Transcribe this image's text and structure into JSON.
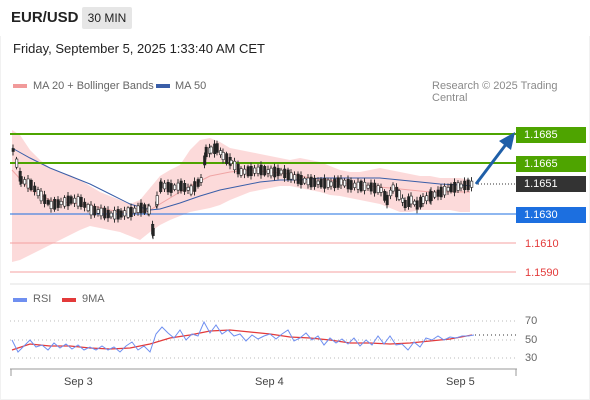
{
  "header": {
    "pair": "EUR/USD",
    "timeframe": "30 MIN",
    "datetime": "Friday, September 5, 2025 1:33:40 AM CET"
  },
  "legend": {
    "bb_label": "MA 20 + Bollinger Bands",
    "ma50_label": "MA 50",
    "research": "Research © 2025 Trading Central"
  },
  "levels": {
    "r2": "1.1685",
    "r1": "1.1665",
    "current": "1.1651",
    "s1": "1.1630",
    "s2": "1.1610",
    "s3": "1.1590"
  },
  "rsi": {
    "label": "RSI",
    "ma_label": "9MA",
    "ticks": [
      "70",
      "50",
      "30"
    ]
  },
  "xaxis": {
    "labels": [
      "Sep 3",
      "Sep 4",
      "Sep 5"
    ]
  },
  "colors": {
    "resistance": "#4ea400",
    "support_blue": "#1c6fe0",
    "support_red": "#e33a3a",
    "current": "#333333",
    "arrow": "#1f5fa8",
    "bb_fill": "#fcd3d3",
    "ma50": "#3a5ea8",
    "rsi": "#6f8ff0",
    "rsi_ma": "#e33a3a"
  }
}
